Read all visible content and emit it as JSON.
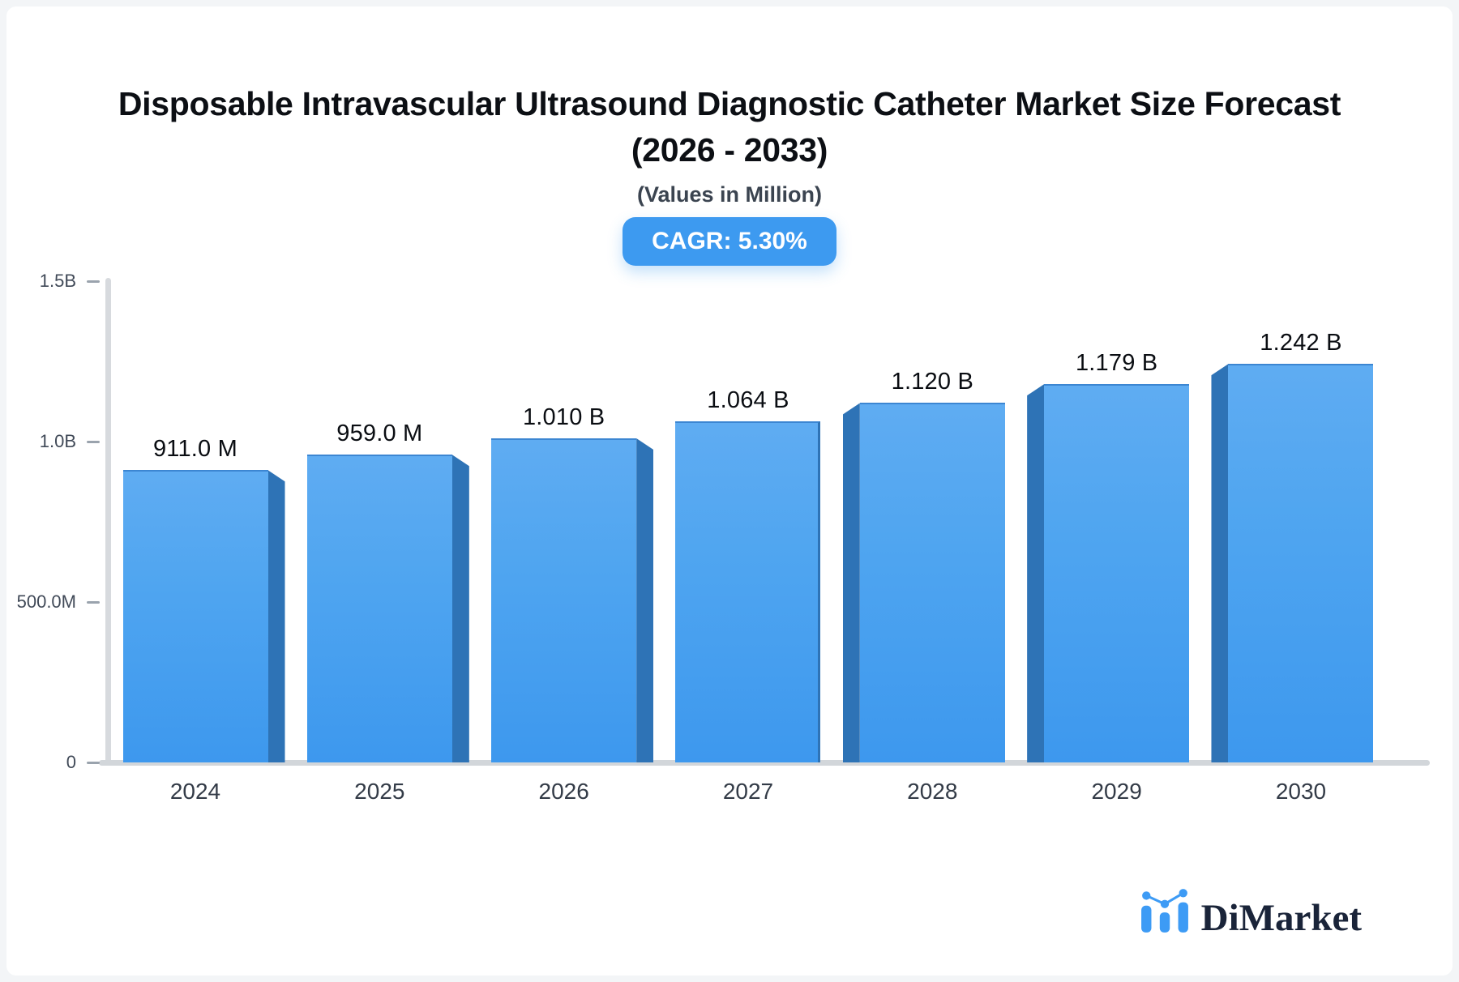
{
  "header": {
    "title_line1": "Disposable Intravascular Ultrasound Diagnostic Catheter Market Size Forecast",
    "title_line2": "(2026 - 2033)",
    "subtitle": "(Values in Million)",
    "cagr_label": "CAGR: 5.30%"
  },
  "brand": {
    "name": "DiMarket",
    "icon": "bar-chart-logo-icon",
    "icon_color": "#3d9bf5",
    "text_color": "#1a2439"
  },
  "chart_data": {
    "type": "bar",
    "title": "Disposable Intravascular Ultrasound Diagnostic Catheter Market Size Forecast (2026 - 2033)",
    "subtitle": "(Values in Million)",
    "cagr": "5.30%",
    "categories": [
      "2024",
      "2025",
      "2026",
      "2027",
      "2028",
      "2029",
      "2030"
    ],
    "values_millions": [
      911.0,
      959.0,
      1010,
      1064,
      1120,
      1179,
      1242
    ],
    "value_labels": [
      "911.0 M",
      "959.0 M",
      "1.010 B",
      "1.064 B",
      "1.120 B",
      "1.179 B",
      "1.242 B"
    ],
    "xlabel": "",
    "ylabel": "",
    "ylim_millions": [
      0,
      1500
    ],
    "y_ticks": [
      {
        "label": "1.5B",
        "value": 1500
      },
      {
        "label": "1.0B",
        "value": 1000
      },
      {
        "label": "500.0M",
        "value": 500
      },
      {
        "label": "0",
        "value": 0
      }
    ],
    "grid": false,
    "legend": false,
    "bar_color": "#3d9af0",
    "bar_side_color": "#2e73b6"
  }
}
